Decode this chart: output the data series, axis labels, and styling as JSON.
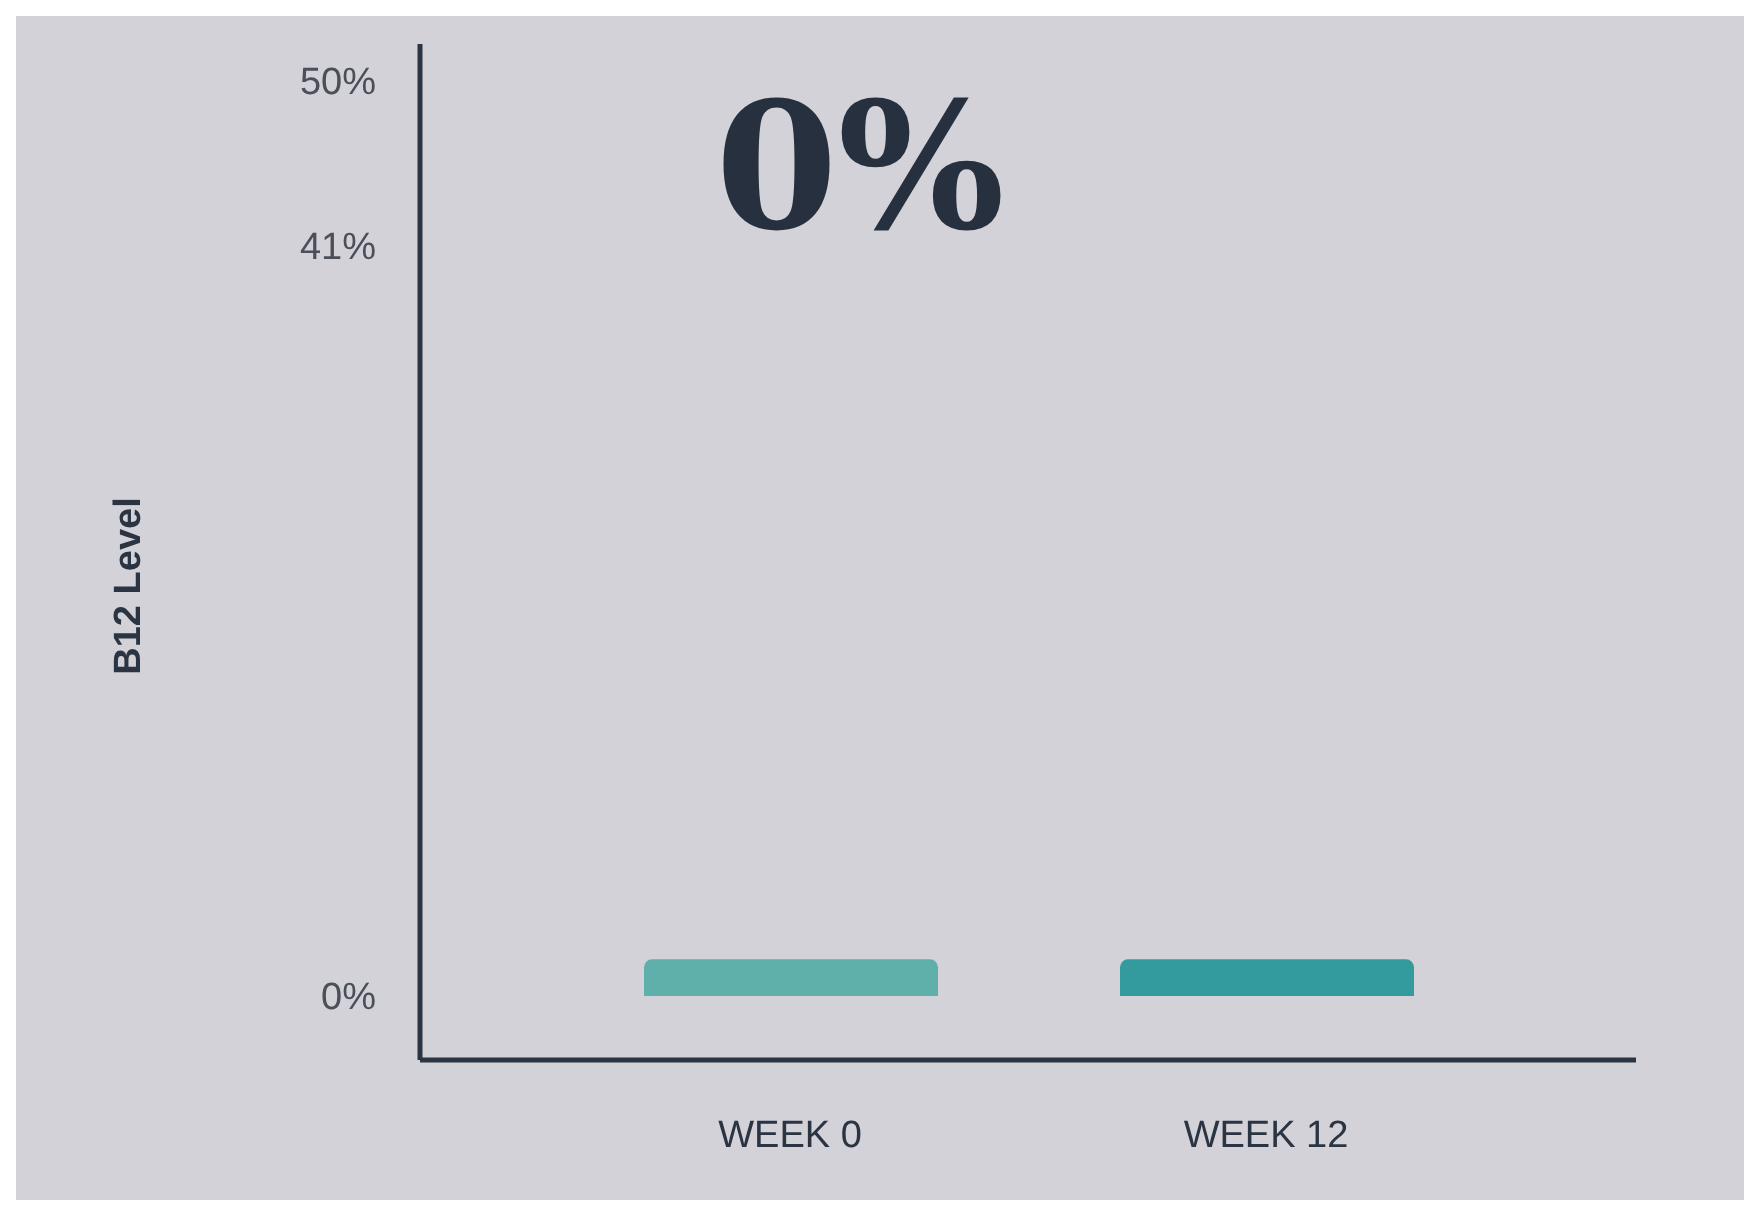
{
  "chart_data": {
    "type": "bar",
    "ylabel": "B12 Level",
    "categories": [
      "WEEK 0",
      "WEEK 12"
    ],
    "values": [
      2,
      2
    ],
    "colors": [
      "#5fb0aa",
      "#339a9e"
    ],
    "ylim": [
      -3.5,
      52
    ],
    "yticks": [
      {
        "value": 0,
        "label": "0%"
      },
      {
        "value": 41,
        "label": "41%"
      },
      {
        "value": 50,
        "label": "50%"
      }
    ],
    "annotations": [
      "0%"
    ]
  }
}
